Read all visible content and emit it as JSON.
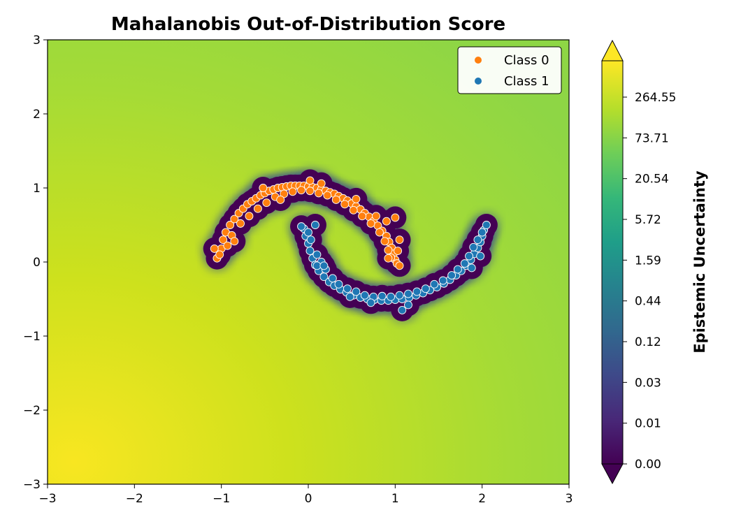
{
  "chart_data": {
    "type": "scatter",
    "title": "Mahalanobis Out-of-Distribution Score",
    "xlabel": "",
    "ylabel": "",
    "xlim": [
      -3,
      3
    ],
    "ylim": [
      -3,
      3
    ],
    "x_ticks": [
      -3,
      -2,
      -1,
      0,
      1,
      2,
      3
    ],
    "y_ticks": [
      -3,
      -2,
      -1,
      0,
      1,
      2,
      3
    ],
    "x_tick_labels": [
      "−3",
      "−2",
      "−1",
      "0",
      "1",
      "2",
      "3"
    ],
    "y_tick_labels": [
      "−3",
      "−2",
      "−1",
      "0",
      "1",
      "2",
      "3"
    ],
    "legend_position": "top-right",
    "background": "filled contour of epistemic uncertainty (viridis colormap, log scale)",
    "series": [
      {
        "name": "Class 0",
        "color": "#ff7f0e",
        "points": [
          [
            -1.05,
            0.05
          ],
          [
            -1.0,
            0.18
          ],
          [
            -0.98,
            0.3
          ],
          [
            -0.95,
            0.4
          ],
          [
            -0.9,
            0.5
          ],
          [
            -0.85,
            0.58
          ],
          [
            -0.8,
            0.66
          ],
          [
            -0.75,
            0.72
          ],
          [
            -0.7,
            0.78
          ],
          [
            -0.65,
            0.82
          ],
          [
            -0.6,
            0.86
          ],
          [
            -0.55,
            0.9
          ],
          [
            -0.5,
            0.93
          ],
          [
            -0.45,
            0.96
          ],
          [
            -0.4,
            0.98
          ],
          [
            -0.35,
            1.0
          ],
          [
            -0.3,
            1.01
          ],
          [
            -0.25,
            1.02
          ],
          [
            -0.2,
            1.03
          ],
          [
            -0.15,
            1.03
          ],
          [
            -0.1,
            1.03
          ],
          [
            -0.05,
            1.03
          ],
          [
            0.0,
            1.02
          ],
          [
            0.05,
            1.01
          ],
          [
            0.1,
            1.0
          ],
          [
            0.15,
            0.98
          ],
          [
            0.2,
            0.96
          ],
          [
            0.25,
            0.94
          ],
          [
            0.3,
            0.92
          ],
          [
            0.35,
            0.89
          ],
          [
            0.4,
            0.86
          ],
          [
            0.45,
            0.83
          ],
          [
            0.5,
            0.79
          ],
          [
            0.55,
            0.75
          ],
          [
            0.6,
            0.71
          ],
          [
            0.65,
            0.66
          ],
          [
            0.7,
            0.61
          ],
          [
            0.75,
            0.55
          ],
          [
            0.8,
            0.49
          ],
          [
            0.85,
            0.42
          ],
          [
            0.9,
            0.35
          ],
          [
            0.93,
            0.27
          ],
          [
            0.96,
            0.19
          ],
          [
            0.98,
            0.11
          ],
          [
            1.0,
            0.03
          ],
          [
            1.02,
            -0.02
          ],
          [
            -1.02,
            0.1
          ],
          [
            -0.93,
            0.22
          ],
          [
            -0.88,
            0.36
          ],
          [
            -0.78,
            0.52
          ],
          [
            -0.68,
            0.62
          ],
          [
            -0.58,
            0.72
          ],
          [
            -0.48,
            0.8
          ],
          [
            -0.38,
            0.88
          ],
          [
            -0.28,
            0.92
          ],
          [
            -0.18,
            0.95
          ],
          [
            -0.08,
            0.97
          ],
          [
            0.02,
            0.96
          ],
          [
            0.12,
            0.93
          ],
          [
            0.22,
            0.9
          ],
          [
            0.32,
            0.84
          ],
          [
            0.42,
            0.78
          ],
          [
            0.52,
            0.7
          ],
          [
            0.62,
            0.62
          ],
          [
            0.72,
            0.52
          ],
          [
            0.82,
            0.4
          ],
          [
            0.88,
            0.28
          ],
          [
            0.92,
            0.16
          ],
          [
            0.95,
            0.06
          ],
          [
            -0.52,
            1.0
          ],
          [
            -0.85,
            0.28
          ],
          [
            -0.32,
            0.84
          ],
          [
            0.02,
            1.1
          ],
          [
            0.15,
            1.06
          ],
          [
            0.55,
            0.85
          ],
          [
            0.78,
            0.62
          ],
          [
            1.0,
            0.6
          ],
          [
            0.9,
            0.55
          ],
          [
            1.05,
            0.3
          ],
          [
            1.03,
            0.15
          ],
          [
            1.05,
            -0.05
          ],
          [
            0.92,
            0.05
          ],
          [
            -1.08,
            0.18
          ]
        ]
      },
      {
        "name": "Class 1",
        "color": "#1f77b4",
        "points": [
          [
            -0.05,
            0.45
          ],
          [
            -0.03,
            0.35
          ],
          [
            0.0,
            0.25
          ],
          [
            0.02,
            0.15
          ],
          [
            0.05,
            0.05
          ],
          [
            0.08,
            -0.04
          ],
          [
            0.12,
            -0.12
          ],
          [
            0.18,
            -0.2
          ],
          [
            0.24,
            -0.27
          ],
          [
            0.3,
            -0.32
          ],
          [
            0.37,
            -0.37
          ],
          [
            0.44,
            -0.41
          ],
          [
            0.52,
            -0.45
          ],
          [
            0.6,
            -0.48
          ],
          [
            0.68,
            -0.5
          ],
          [
            0.76,
            -0.51
          ],
          [
            0.84,
            -0.52
          ],
          [
            0.92,
            -0.52
          ],
          [
            1.0,
            -0.51
          ],
          [
            1.08,
            -0.5
          ],
          [
            1.16,
            -0.48
          ],
          [
            1.24,
            -0.45
          ],
          [
            1.32,
            -0.42
          ],
          [
            1.4,
            -0.38
          ],
          [
            1.48,
            -0.34
          ],
          [
            1.56,
            -0.29
          ],
          [
            1.63,
            -0.24
          ],
          [
            1.7,
            -0.18
          ],
          [
            1.76,
            -0.12
          ],
          [
            1.82,
            -0.05
          ],
          [
            1.87,
            0.03
          ],
          [
            1.91,
            0.11
          ],
          [
            1.95,
            0.19
          ],
          [
            1.98,
            0.27
          ],
          [
            2.0,
            0.35
          ],
          [
            2.02,
            0.43
          ],
          [
            2.05,
            0.5
          ],
          [
            -0.08,
            0.48
          ],
          [
            0.0,
            0.4
          ],
          [
            0.03,
            0.3
          ],
          [
            0.1,
            0.1
          ],
          [
            0.15,
            0.0
          ],
          [
            0.2,
            -0.1
          ],
          [
            0.28,
            -0.22
          ],
          [
            0.35,
            -0.3
          ],
          [
            0.45,
            -0.36
          ],
          [
            0.55,
            -0.4
          ],
          [
            0.65,
            -0.45
          ],
          [
            0.75,
            -0.47
          ],
          [
            0.85,
            -0.46
          ],
          [
            0.95,
            -0.47
          ],
          [
            1.05,
            -0.45
          ],
          [
            1.15,
            -0.43
          ],
          [
            1.25,
            -0.4
          ],
          [
            1.35,
            -0.36
          ],
          [
            1.45,
            -0.3
          ],
          [
            1.55,
            -0.25
          ],
          [
            1.65,
            -0.18
          ],
          [
            1.72,
            -0.1
          ],
          [
            1.8,
            -0.02
          ],
          [
            1.85,
            0.08
          ],
          [
            1.9,
            0.2
          ],
          [
            1.95,
            0.3
          ],
          [
            2.0,
            0.4
          ],
          [
            1.08,
            -0.65
          ],
          [
            1.15,
            -0.58
          ],
          [
            0.72,
            -0.55
          ],
          [
            0.48,
            -0.47
          ],
          [
            0.08,
            0.5
          ],
          [
            1.98,
            0.08
          ],
          [
            1.88,
            -0.08
          ],
          [
            0.1,
            -0.05
          ],
          [
            0.18,
            -0.05
          ]
        ]
      }
    ],
    "colorbar": {
      "label": "Epistemic Uncertainty",
      "colormap": "viridis",
      "scale": "log",
      "extend": "both",
      "tick_labels": [
        "0.00",
        "0.01",
        "0.03",
        "0.12",
        "0.44",
        "1.59",
        "5.72",
        "20.54",
        "73.71",
        "264.55"
      ]
    }
  }
}
